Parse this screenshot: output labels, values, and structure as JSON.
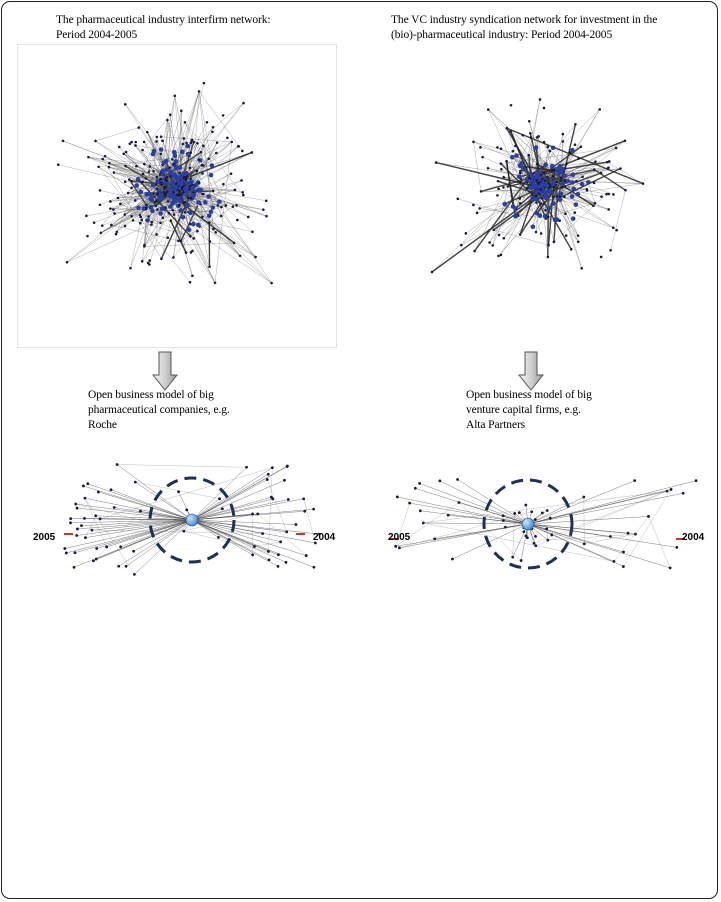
{
  "left": {
    "title_line1": "The pharmaceutical industry interfirm  network:",
    "title_line2": "Period 2004-2005",
    "model_line1": "Open business model of big",
    "model_line2": "pharmaceutical companies, e.g.",
    "model_line3": "Roche",
    "year_left": "2005",
    "year_right": "2004"
  },
  "right": {
    "title_line1": "The VC industry syndication network for investment in the",
    "title_line2": "(bio)-pharmaceutical industry: Period 2004-2005",
    "model_line1": "Open business model of big",
    "model_line2": "venture capital firms, e.g.",
    "model_line3": "Alta Partners",
    "year_left": "2005",
    "year_right": "2004"
  },
  "colors": {
    "node_dark": "#1a1a3a",
    "node_hub": "#2a3fa0",
    "edge": "#555555",
    "dashed_ring": "#1f2f55",
    "hub_ball": "#3d86d6",
    "label_red": "#c0392b"
  }
}
